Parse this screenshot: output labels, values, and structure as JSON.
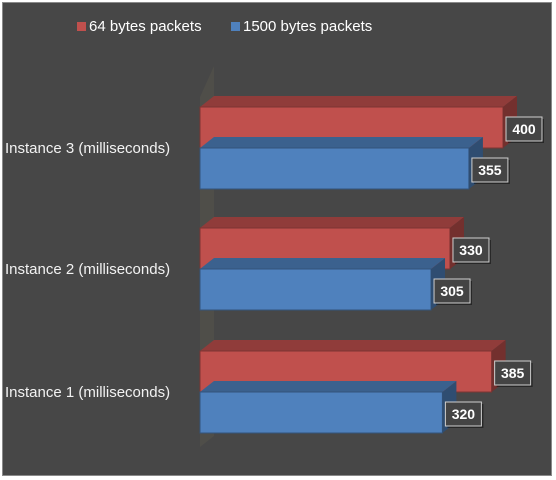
{
  "chart_data": {
    "type": "bar",
    "orientation": "horizontal",
    "style": "3d",
    "grid": false,
    "legend_position": "top",
    "categories": [
      "Instance 1 (milliseconds)",
      "Instance 2 (milliseconds)",
      "Instance 3 (milliseconds)"
    ],
    "series": [
      {
        "name": "64 bytes packets",
        "color": "#c0504d",
        "values": [
          385,
          330,
          400
        ]
      },
      {
        "name": "1500 bytes packets",
        "color": "#4f81bd",
        "values": [
          320,
          305,
          355
        ]
      }
    ],
    "xlim": [
      0,
      400
    ],
    "title": "",
    "xlabel": "",
    "ylabel": ""
  },
  "colors": {
    "background": "#474747",
    "wall": "#4f4e49",
    "label_box_fill": "#444444",
    "label_box_border": "#cfcfcf"
  }
}
